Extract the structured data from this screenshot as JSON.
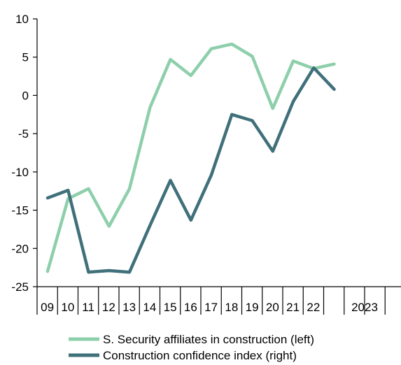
{
  "chart_data": {
    "type": "line",
    "title": "",
    "xlabel": "",
    "ylabel": "",
    "ylim": [
      -25,
      10
    ],
    "yticks": [
      10,
      5,
      0,
      -5,
      -10,
      -15,
      -20,
      -25
    ],
    "x_categories": [
      "09",
      "10",
      "11",
      "12",
      "13",
      "14",
      "15",
      "16",
      "17",
      "18",
      "19",
      "20",
      "21",
      "22",
      "2023"
    ],
    "series": [
      {
        "name": "S. Security affiliates in construction (left)",
        "color": "#8ecfab",
        "values": [
          -23.0,
          -13.5,
          -12.2,
          -17.1,
          -12.2,
          -1.6,
          4.7,
          2.6,
          6.1,
          6.7,
          5.1,
          -1.7,
          4.5,
          3.5,
          4.1
        ]
      },
      {
        "name": "Construction confidence index (right)",
        "color": "#40707a",
        "values": [
          -13.4,
          -12.4,
          -23.1,
          -22.9,
          -23.1,
          -17.0,
          -11.1,
          -16.3,
          -10.4,
          -2.5,
          -3.3,
          -7.3,
          -0.8,
          3.6,
          0.8
        ]
      }
    ],
    "grid": false,
    "legend_position": "bottom"
  }
}
